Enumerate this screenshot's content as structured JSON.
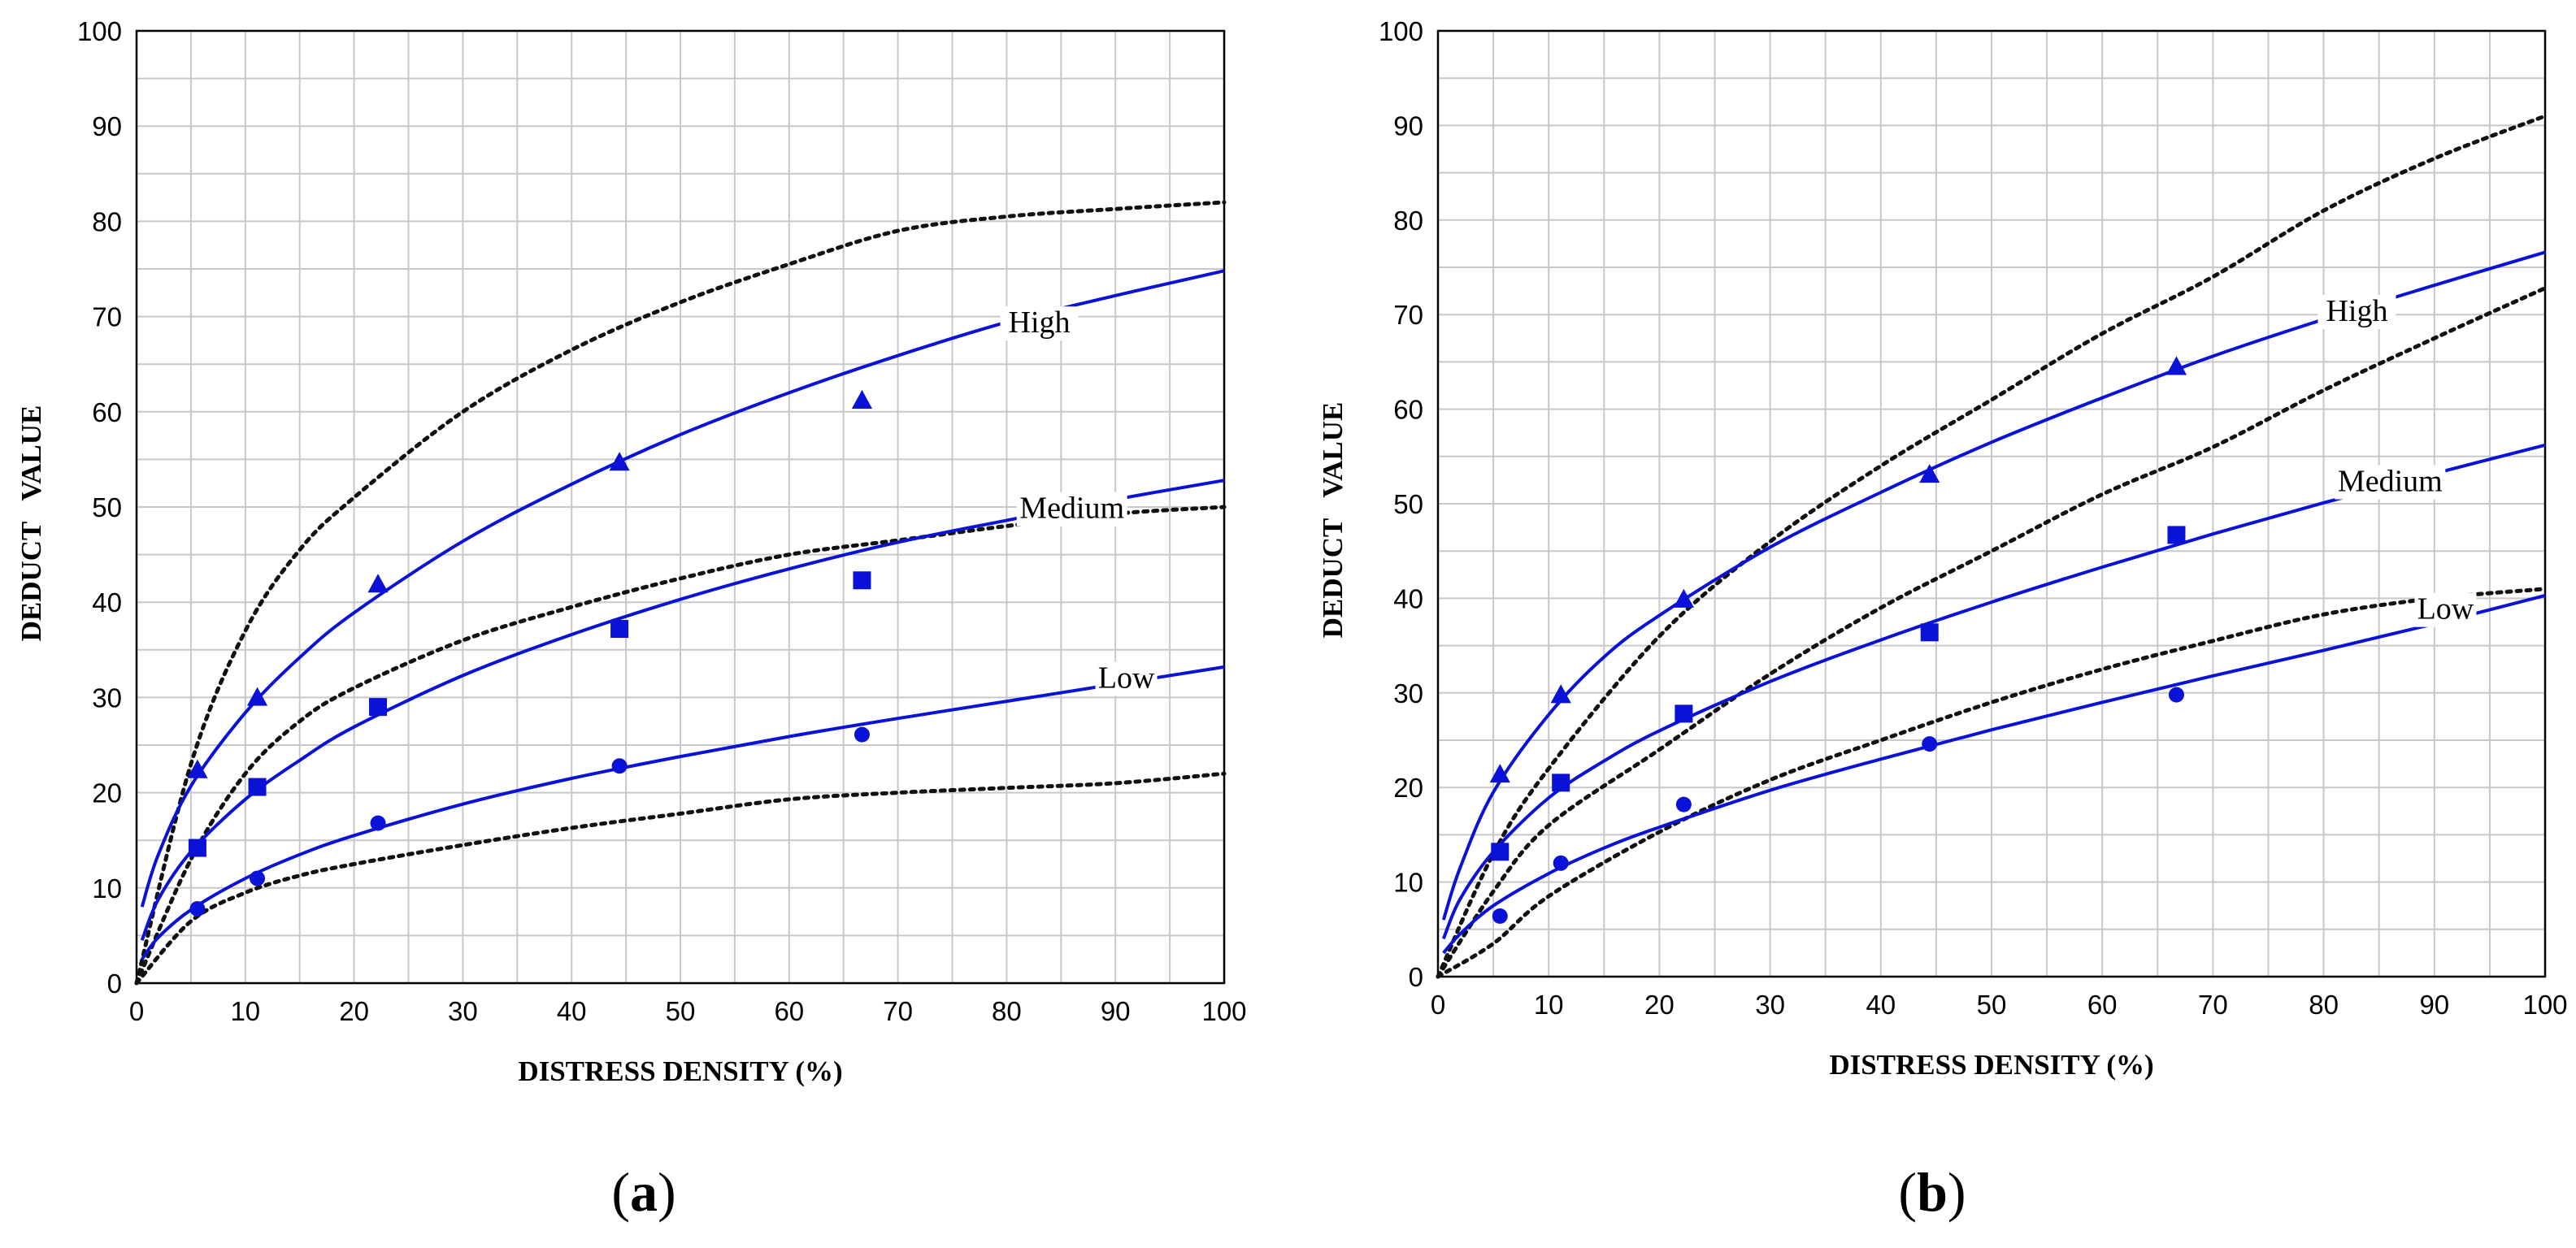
{
  "chart_data": [
    {
      "type": "scatter",
      "caption": "a",
      "xlabel": "DISTRESS DENSITY (%)",
      "ylabel": "DEDUCT   VALUE",
      "xlim": [
        0,
        100
      ],
      "ylim": [
        0,
        100
      ],
      "x_ticks": [
        "0",
        "10",
        "20",
        "30",
        "40",
        "50",
        "60",
        "70",
        "80",
        "90",
        "100"
      ],
      "y_ticks": [
        "0",
        "10",
        "20",
        "30",
        "40",
        "50",
        "60",
        "70",
        "80",
        "90",
        "100"
      ],
      "grid": true,
      "series": [
        {
          "name": "High",
          "marker": "triangle",
          "points": [
            [
              5.6,
              22.3
            ],
            [
              11.1,
              29.9
            ],
            [
              22.2,
              41.8
            ],
            [
              44.4,
              54.6
            ],
            [
              66.7,
              61.1
            ]
          ],
          "fit": [
            [
              0.5,
              8
            ],
            [
              2,
              13.5
            ],
            [
              5,
              20.7
            ],
            [
              10,
              28.4
            ],
            [
              15,
              34.2
            ],
            [
              20,
              38.9
            ],
            [
              30,
              46.4
            ],
            [
              40,
              52.4
            ],
            [
              50,
              57.6
            ],
            [
              60,
              62.0
            ],
            [
              70,
              65.9
            ],
            [
              80,
              69.4
            ],
            [
              90,
              72.2
            ],
            [
              100,
              74.8
            ]
          ],
          "reference": [
            [
              0,
              0
            ],
            [
              5,
              23
            ],
            [
              10,
              37
            ],
            [
              15,
              45.5
            ],
            [
              20,
              51
            ],
            [
              30,
              60
            ],
            [
              40,
              66.5
            ],
            [
              50,
              71.5
            ],
            [
              60,
              75.5
            ],
            [
              70,
              79
            ],
            [
              80,
              80.5
            ],
            [
              90,
              81.3
            ],
            [
              100,
              82
            ]
          ]
        },
        {
          "name": "Medium",
          "marker": "square",
          "points": [
            [
              5.6,
              14.2
            ],
            [
              11.1,
              20.6
            ],
            [
              22.2,
              29.0
            ],
            [
              44.4,
              37.2
            ],
            [
              66.7,
              42.3
            ]
          ],
          "fit": [
            [
              0.5,
              4.5
            ],
            [
              2,
              8.8
            ],
            [
              5,
              13.8
            ],
            [
              10,
              19.3
            ],
            [
              15,
              23.4
            ],
            [
              20,
              26.9
            ],
            [
              30,
              32.3
            ],
            [
              40,
              36.6
            ],
            [
              50,
              40.3
            ],
            [
              60,
              43.5
            ],
            [
              70,
              46.3
            ],
            [
              80,
              48.6
            ],
            [
              90,
              50.8
            ],
            [
              100,
              52.8
            ]
          ],
          "reference": [
            [
              0,
              0
            ],
            [
              5,
              13
            ],
            [
              10,
              22
            ],
            [
              15,
              27.5
            ],
            [
              20,
              31
            ],
            [
              30,
              36
            ],
            [
              40,
              39.5
            ],
            [
              50,
              42.5
            ],
            [
              60,
              45
            ],
            [
              70,
              46.5
            ],
            [
              80,
              48
            ],
            [
              90,
              49.3
            ],
            [
              100,
              50
            ]
          ]
        },
        {
          "name": "Low",
          "marker": "circle",
          "points": [
            [
              5.6,
              7.8
            ],
            [
              11.1,
              11.0
            ],
            [
              22.2,
              16.8
            ],
            [
              44.4,
              22.8
            ],
            [
              66.7,
              26.1
            ]
          ],
          "fit": [
            [
              0.5,
              2.5
            ],
            [
              2,
              4.8
            ],
            [
              5,
              7.7
            ],
            [
              10,
              11.0
            ],
            [
              15,
              13.5
            ],
            [
              20,
              15.5
            ],
            [
              30,
              18.8
            ],
            [
              40,
              21.5
            ],
            [
              50,
              23.8
            ],
            [
              60,
              25.9
            ],
            [
              70,
              27.8
            ],
            [
              80,
              29.6
            ],
            [
              90,
              31.4
            ],
            [
              100,
              33.2
            ]
          ],
          "reference": [
            [
              0,
              0
            ],
            [
              5,
              6.5
            ],
            [
              10,
              9.5
            ],
            [
              15,
              11.3
            ],
            [
              20,
              12.5
            ],
            [
              30,
              14.5
            ],
            [
              40,
              16.3
            ],
            [
              50,
              17.8
            ],
            [
              60,
              19.3
            ],
            [
              70,
              20
            ],
            [
              80,
              20.5
            ],
            [
              90,
              21
            ],
            [
              100,
              22
            ]
          ]
        }
      ],
      "curve_labels": [
        {
          "text": "High",
          "x": 83,
          "y": 68.5
        },
        {
          "text": "Medium",
          "x": 86,
          "y": 49
        },
        {
          "text": "Low",
          "x": 91,
          "y": 31.2
        }
      ]
    },
    {
      "type": "scatter",
      "caption": "b",
      "xlabel": "DISTRESS DENSITY (%)",
      "ylabel": "DEDUCT   VALUE",
      "xlim": [
        0,
        100
      ],
      "ylim": [
        0,
        100
      ],
      "x_ticks": [
        "0",
        "10",
        "20",
        "30",
        "40",
        "50",
        "60",
        "70",
        "80",
        "90",
        "100"
      ],
      "y_ticks": [
        "0",
        "10",
        "20",
        "30",
        "40",
        "50",
        "60",
        "70",
        "80",
        "90",
        "100"
      ],
      "grid": true,
      "series": [
        {
          "name": "High",
          "marker": "triangle",
          "points": [
            [
              5.6,
              21.3
            ],
            [
              11.1,
              29.7
            ],
            [
              22.2,
              39.8
            ],
            [
              44.4,
              53.0
            ],
            [
              66.7,
              64.4
            ]
          ],
          "fit": [
            [
              0.5,
              6
            ],
            [
              2,
              11.5
            ],
            [
              5,
              19.5
            ],
            [
              10,
              27.7
            ],
            [
              15,
              33.8
            ],
            [
              20,
              38.2
            ],
            [
              30,
              45.4
            ],
            [
              40,
              51.2
            ],
            [
              50,
              56.5
            ],
            [
              60,
              61.2
            ],
            [
              70,
              65.6
            ],
            [
              80,
              69.5
            ],
            [
              90,
              73.1
            ],
            [
              100,
              76.6
            ]
          ],
          "reference": [
            [
              0,
              0
            ],
            [
              5,
              13
            ],
            [
              10,
              22
            ],
            [
              20,
              36
            ],
            [
              30,
              46
            ],
            [
              40,
              54
            ],
            [
              50,
              61
            ],
            [
              60,
              68
            ],
            [
              70,
              74
            ],
            [
              80,
              81
            ],
            [
              90,
              86.5
            ],
            [
              100,
              91
            ]
          ]
        },
        {
          "name": "Medium",
          "marker": "square",
          "points": [
            [
              5.6,
              13.2
            ],
            [
              11.1,
              20.5
            ],
            [
              22.2,
              27.8
            ],
            [
              44.4,
              36.4
            ],
            [
              66.7,
              46.7
            ]
          ],
          "fit": [
            [
              0.5,
              4
            ],
            [
              2,
              8.2
            ],
            [
              5,
              13.2
            ],
            [
              10,
              18.9
            ],
            [
              15,
              22.8
            ],
            [
              20,
              26.0
            ],
            [
              30,
              31.2
            ],
            [
              40,
              35.6
            ],
            [
              50,
              39.6
            ],
            [
              60,
              43.3
            ],
            [
              70,
              46.8
            ],
            [
              80,
              50.1
            ],
            [
              90,
              53.2
            ],
            [
              100,
              56.2
            ]
          ],
          "reference": [
            [
              0,
              0
            ],
            [
              5,
              9
            ],
            [
              10,
              16
            ],
            [
              20,
              24
            ],
            [
              30,
              32
            ],
            [
              40,
              39
            ],
            [
              50,
              45
            ],
            [
              60,
              51
            ],
            [
              70,
              56
            ],
            [
              80,
              62
            ],
            [
              90,
              67.5
            ],
            [
              100,
              72.8
            ]
          ]
        },
        {
          "name": "Low",
          "marker": "circle",
          "points": [
            [
              5.6,
              6.4
            ],
            [
              11.1,
              12.0
            ],
            [
              22.2,
              18.2
            ],
            [
              44.4,
              24.6
            ],
            [
              66.7,
              29.8
            ]
          ],
          "fit": [
            [
              0.5,
              2.5
            ],
            [
              2,
              4.5
            ],
            [
              5,
              7.5
            ],
            [
              10,
              10.9
            ],
            [
              15,
              13.6
            ],
            [
              20,
              15.8
            ],
            [
              30,
              19.7
            ],
            [
              40,
              23.0
            ],
            [
              50,
              26.1
            ],
            [
              60,
              29.0
            ],
            [
              70,
              31.8
            ],
            [
              80,
              34.5
            ],
            [
              90,
              37.3
            ],
            [
              100,
              40.3
            ]
          ],
          "reference": [
            [
              0,
              0
            ],
            [
              5,
              3.5
            ],
            [
              10,
              8.5
            ],
            [
              20,
              15.3
            ],
            [
              30,
              20.8
            ],
            [
              40,
              25
            ],
            [
              50,
              29
            ],
            [
              60,
              32.5
            ],
            [
              70,
              35.5
            ],
            [
              80,
              38.3
            ],
            [
              90,
              40
            ],
            [
              100,
              41
            ]
          ]
        }
      ],
      "curve_labels": [
        {
          "text": "High",
          "x": 83,
          "y": 69.5
        },
        {
          "text": "Medium",
          "x": 86,
          "y": 51.5
        },
        {
          "text": "Low",
          "x": 91,
          "y": 38
        }
      ]
    }
  ]
}
